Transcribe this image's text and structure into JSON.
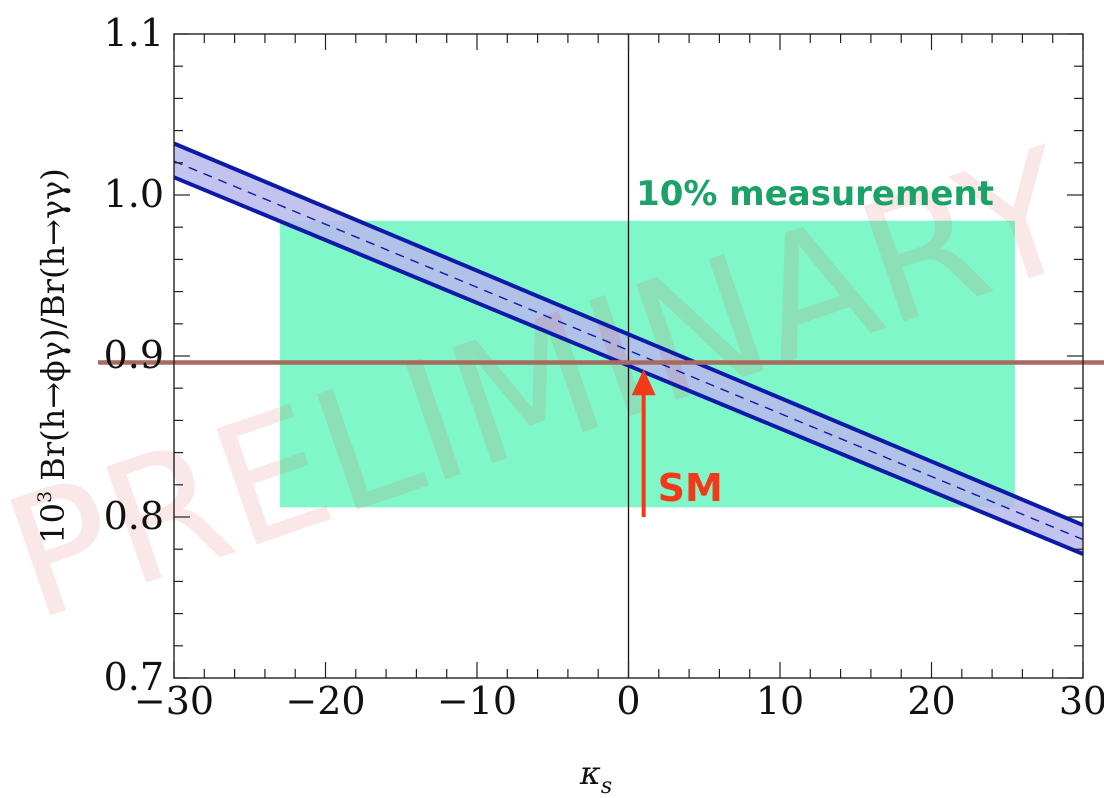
{
  "chart_data": {
    "type": "line",
    "xlabel": "κ",
    "xlabel_sub": "s",
    "ylabel_prefix": "10",
    "ylabel_exp": "3",
    "ylabel_main": " Br(h→ϕγ)/Br(h→γγ)",
    "xlim": [
      -30,
      30
    ],
    "ylim": [
      0.7,
      1.1
    ],
    "xticks": [
      -30,
      -20,
      -10,
      0,
      10,
      20,
      30
    ],
    "xtick_labels": [
      "−30",
      "−20",
      "−10",
      "0",
      "10",
      "20",
      "30"
    ],
    "yticks": [
      0.7,
      0.8,
      0.9,
      1.0,
      1.1
    ],
    "ytick_labels": [
      "0.7",
      "0.8",
      "0.9",
      "1.0",
      "1.1"
    ],
    "grid": false,
    "series": [
      {
        "role": "band-upper",
        "x": [
          -30,
          30
        ],
        "y": [
          1.032,
          0.795
        ],
        "color": "#0d1aa8"
      },
      {
        "role": "band-lower",
        "x": [
          -30,
          30
        ],
        "y": [
          1.011,
          0.777
        ],
        "color": "#0d1aa8"
      },
      {
        "role": "central",
        "x": [
          -30,
          30
        ],
        "y": [
          1.021,
          0.786
        ],
        "color": "#0d1aa8",
        "dashed": true
      }
    ],
    "band_fill": "#b9b8ec",
    "measurement_box": {
      "x": [
        -23,
        25.5
      ],
      "y": [
        0.806,
        0.984
      ],
      "color": "#80f7c8",
      "label": "10% measurement",
      "label_color": "#1ba267"
    },
    "sm_line": {
      "y": 0.896,
      "color": "#a86a5e"
    },
    "sm_marker": {
      "x": 1.0,
      "y_from": 0.8,
      "y_to": 0.893,
      "label": "SM",
      "color": "#f23a1a"
    },
    "zero_line_x": 0,
    "watermark": {
      "text": "PRELIMINARY",
      "color": "#d9434a"
    }
  }
}
